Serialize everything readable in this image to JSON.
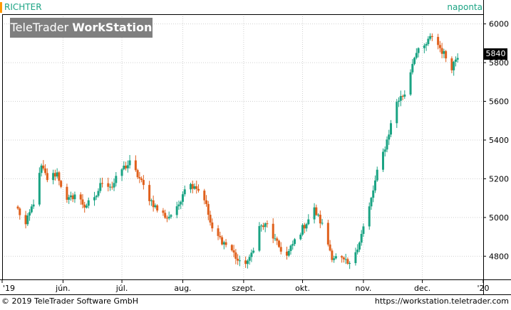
{
  "header": {
    "symbol": "RICHTER",
    "interval": "naponta",
    "watermark_light": "TeleTrader ",
    "watermark_bold": "WorkStation"
  },
  "footer": {
    "copyright": "© 2019 TeleTrader Software GmbH",
    "url": "https://workstation.teletrader.com"
  },
  "colors": {
    "up": "#1aa383",
    "down": "#e0601c",
    "grid": "#d0d0d0",
    "accent": "#ff9900",
    "header_text": "#1aa383",
    "watermark_bg": "#7f7f7f"
  },
  "chart_data": {
    "type": "candlestick",
    "last_price": "5840",
    "y_ticks": [
      "4800",
      "5000",
      "5200",
      "5400",
      "5600",
      "5800",
      "6000"
    ],
    "ylim": [
      4680,
      6050
    ],
    "x_labels": [
      {
        "label": "'19",
        "date": "2019-05-01"
      },
      {
        "label": "jún.",
        "date": "2019-06-01"
      },
      {
        "label": "júl.",
        "date": "2019-07-01"
      },
      {
        "label": "aug.",
        "date": "2019-08-01"
      },
      {
        "label": "szept.",
        "date": "2019-09-01"
      },
      {
        "label": "okt.",
        "date": "2019-10-01"
      },
      {
        "label": "nov.",
        "date": "2019-11-01"
      },
      {
        "label": "dec.",
        "date": "2019-12-01"
      },
      {
        "label": "'20",
        "date": "2020-01-01"
      }
    ],
    "xlim": [
      "2019-05-01",
      "2020-01-01"
    ],
    "anchors": [
      [
        "2019-05-09",
        5040
      ],
      [
        "2019-05-13",
        4960
      ],
      [
        "2019-05-17",
        5080
      ],
      [
        "2019-05-21",
        5260
      ],
      [
        "2019-05-24",
        5200
      ],
      [
        "2019-05-29",
        5230
      ],
      [
        "2019-06-03",
        5080
      ],
      [
        "2019-06-07",
        5120
      ],
      [
        "2019-06-12",
        5060
      ],
      [
        "2019-06-17",
        5090
      ],
      [
        "2019-06-21",
        5190
      ],
      [
        "2019-06-26",
        5160
      ],
      [
        "2019-07-01",
        5250
      ],
      [
        "2019-07-05",
        5280
      ],
      [
        "2019-07-10",
        5200
      ],
      [
        "2019-07-15",
        5100
      ],
      [
        "2019-07-19",
        5040
      ],
      [
        "2019-07-24",
        5000
      ],
      [
        "2019-07-29",
        5040
      ],
      [
        "2019-08-02",
        5160
      ],
      [
        "2019-08-07",
        5170
      ],
      [
        "2019-08-12",
        5100
      ],
      [
        "2019-08-16",
        4930
      ],
      [
        "2019-08-21",
        4880
      ],
      [
        "2019-08-26",
        4830
      ],
      [
        "2019-08-30",
        4760
      ],
      [
        "2019-09-04",
        4780
      ],
      [
        "2019-09-09",
        4950
      ],
      [
        "2019-09-13",
        4960
      ],
      [
        "2019-09-18",
        4860
      ],
      [
        "2019-09-23",
        4800
      ],
      [
        "2019-09-27",
        4880
      ],
      [
        "2019-10-02",
        4960
      ],
      [
        "2019-10-07",
        5040
      ],
      [
        "2019-10-11",
        4960
      ],
      [
        "2019-10-16",
        4800
      ],
      [
        "2019-10-21",
        4780
      ],
      [
        "2019-10-25",
        4750
      ],
      [
        "2019-10-30",
        4880
      ],
      [
        "2019-11-04",
        5050
      ],
      [
        "2019-11-08",
        5230
      ],
      [
        "2019-11-13",
        5400
      ],
      [
        "2019-11-18",
        5600
      ],
      [
        "2019-11-22",
        5640
      ],
      [
        "2019-11-27",
        5840
      ],
      [
        "2019-12-02",
        5880
      ],
      [
        "2019-12-06",
        5940
      ],
      [
        "2019-12-11",
        5860
      ],
      [
        "2019-12-16",
        5780
      ],
      [
        "2019-12-19",
        5840
      ]
    ],
    "grid": true,
    "legend": "none"
  }
}
